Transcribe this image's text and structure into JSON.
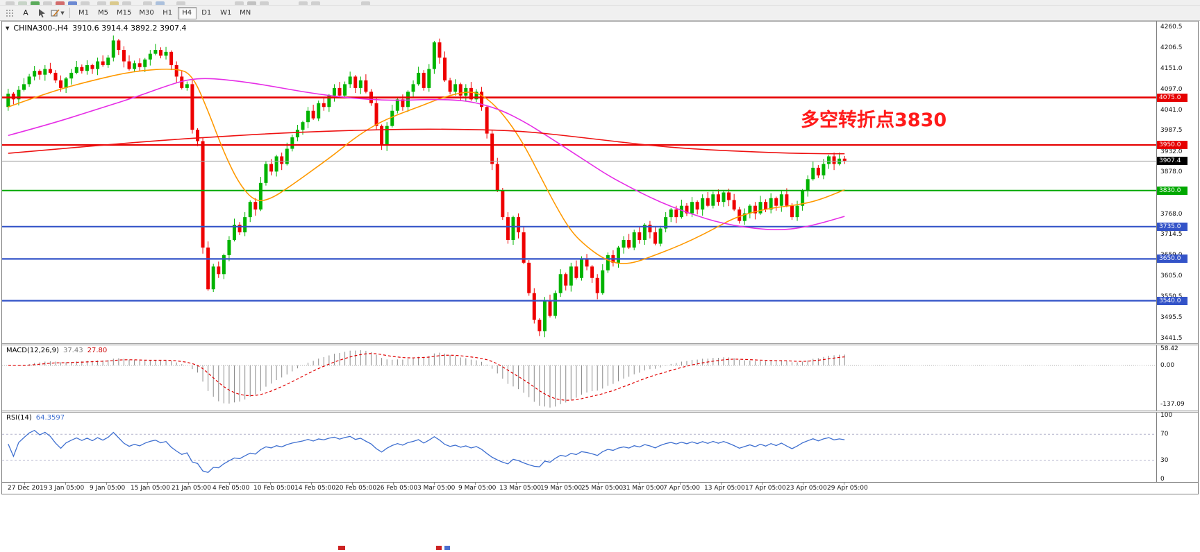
{
  "toolbar": {
    "text_tool_label": "A",
    "timeframes": [
      "M1",
      "M5",
      "M15",
      "M30",
      "H1",
      "H4",
      "D1",
      "W1",
      "MN"
    ],
    "active_timeframe": "H4"
  },
  "main_chart": {
    "header": {
      "symbol_tf": "CHINA300-,H4",
      "ohlc": "3910.6 3914.4 3892.2 3907.4"
    },
    "annotation": {
      "text": "多空转折点3830",
      "color": "#ff1a1a"
    },
    "price_axis": [
      "4260.5",
      "4206.5",
      "4151.0",
      "4097.0",
      "4041.0",
      "3987.5",
      "3932.0",
      "3878.0",
      "3822.5",
      "3768.0",
      "3714.5",
      "3659.0",
      "3605.0",
      "3550.5",
      "3495.5",
      "3441.5"
    ],
    "levels": [
      {
        "price": 4075.0,
        "label": "4075.0",
        "color": "#e60000",
        "width": 2.6
      },
      {
        "price": 3950.0,
        "label": "3950.0",
        "color": "#e60000",
        "width": 2.2
      },
      {
        "price": 3830.0,
        "label": "3830.0",
        "color": "#00a800",
        "width": 2.0
      },
      {
        "price": 3735.0,
        "label": "3735.0",
        "color": "#3353c8",
        "width": 2.2
      },
      {
        "price": 3650.0,
        "label": "3650.0",
        "color": "#3353c8",
        "width": 2.2
      },
      {
        "price": 3540.0,
        "label": "3540.0",
        "color": "#3353c8",
        "width": 2.2
      }
    ],
    "current_price": {
      "value": 3907.4,
      "label": "3907.4",
      "line_color": "#a8a8a8",
      "tag_bg": "#000000"
    }
  },
  "macd": {
    "name": "MACD(12,26,9)",
    "value_main": "37.43",
    "value_signal": "27.80",
    "axis": [
      "58.42",
      "0.00",
      "-137.09"
    ],
    "bar_color": "#8a8a8a",
    "signal_color": "#e00000"
  },
  "rsi": {
    "name": "RSI(14)",
    "value": "64.3597",
    "axis": [
      "100",
      "70",
      "30",
      "0"
    ],
    "levels": [
      70,
      30
    ],
    "line_color": "#3e6fd0"
  },
  "time_axis": [
    "27 Dec 2019",
    "3 Jan 05:00",
    "9 Jan 05:00",
    "15 Jan 05:00",
    "21 Jan 05:00",
    "4 Feb 05:00",
    "10 Feb 05:00",
    "14 Feb 05:00",
    "20 Feb 05:00",
    "26 Feb 05:00",
    "3 Mar 05:00",
    "9 Mar 05:00",
    "13 Mar 05:00",
    "19 Mar 05:00",
    "25 Mar 05:00",
    "31 Mar 05:00",
    "7 Apr 05:00",
    "13 Apr 05:00",
    "17 Apr 05:00",
    "23 Apr 05:00",
    "29 Apr 05:00"
  ],
  "chart_data": {
    "type": "candlestick",
    "symbol": "CHINA300-",
    "timeframe": "H4",
    "y_range": [
      3428,
      4275
    ],
    "up_color": "#00b300",
    "down_color": "#ee0000",
    "first_open": 4050,
    "closes": [
      4085,
      4070,
      4095,
      4110,
      4130,
      4145,
      4135,
      4150,
      4140,
      4120,
      4100,
      4125,
      4140,
      4155,
      4145,
      4160,
      4150,
      4170,
      4160,
      4180,
      4225,
      4200,
      4170,
      4150,
      4165,
      4155,
      4175,
      4190,
      4200,
      4185,
      4195,
      4160,
      4130,
      4100,
      4110,
      3990,
      3960,
      3680,
      3570,
      3630,
      3610,
      3660,
      3700,
      3740,
      3720,
      3760,
      3800,
      3780,
      3850,
      3900,
      3880,
      3920,
      3900,
      3940,
      3970,
      3990,
      4010,
      4040,
      4020,
      4060,
      4050,
      4080,
      4100,
      4080,
      4110,
      4130,
      4100,
      4120,
      4090,
      4060,
      4000,
      3950,
      4000,
      4040,
      4070,
      4050,
      4090,
      4110,
      4140,
      4100,
      4150,
      4220,
      4180,
      4120,
      4090,
      4110,
      4080,
      4100,
      4070,
      4090,
      4050,
      3980,
      3900,
      3830,
      3760,
      3700,
      3760,
      3720,
      3640,
      3560,
      3490,
      3460,
      3540,
      3500,
      3560,
      3610,
      3580,
      3630,
      3600,
      3650,
      3630,
      3600,
      3560,
      3620,
      3660,
      3640,
      3680,
      3700,
      3680,
      3720,
      3700,
      3740,
      3720,
      3690,
      3730,
      3760,
      3780,
      3760,
      3790,
      3770,
      3800,
      3780,
      3810,
      3790,
      3820,
      3800,
      3825,
      3805,
      3780,
      3750,
      3770,
      3790,
      3770,
      3800,
      3780,
      3810,
      3790,
      3820,
      3790,
      3760,
      3790,
      3830,
      3860,
      3890,
      3870,
      3900,
      3920,
      3900,
      3914,
      3907
    ],
    "moving_averages": [
      {
        "name": "fast-orange",
        "color": "#ff9900",
        "points": [
          [
            0,
            4050
          ],
          [
            8,
            4090
          ],
          [
            16,
            4120
          ],
          [
            24,
            4145
          ],
          [
            32,
            4152
          ],
          [
            35,
            4135
          ],
          [
            38,
            4040
          ],
          [
            41,
            3930
          ],
          [
            44,
            3845
          ],
          [
            47,
            3800
          ],
          [
            50,
            3808
          ],
          [
            54,
            3845
          ],
          [
            58,
            3885
          ],
          [
            62,
            3925
          ],
          [
            66,
            3970
          ],
          [
            70,
            4005
          ],
          [
            74,
            4030
          ],
          [
            78,
            4050
          ],
          [
            82,
            4072
          ],
          [
            86,
            4088
          ],
          [
            89,
            4090
          ],
          [
            92,
            4062
          ],
          [
            95,
            4015
          ],
          [
            98,
            3952
          ],
          [
            101,
            3872
          ],
          [
            104,
            3792
          ],
          [
            107,
            3722
          ],
          [
            110,
            3682
          ],
          [
            113,
            3652
          ],
          [
            116,
            3636
          ],
          [
            119,
            3640
          ],
          [
            122,
            3655
          ],
          [
            126,
            3676
          ],
          [
            130,
            3700
          ],
          [
            134,
            3728
          ],
          [
            138,
            3758
          ],
          [
            142,
            3775
          ],
          [
            146,
            3786
          ],
          [
            150,
            3792
          ],
          [
            154,
            3804
          ],
          [
            159,
            3832
          ]
        ]
      },
      {
        "name": "slow-magenta",
        "color": "#e62ee6",
        "points": [
          [
            0,
            3975
          ],
          [
            8,
            4005
          ],
          [
            16,
            4040
          ],
          [
            24,
            4075
          ],
          [
            30,
            4105
          ],
          [
            34,
            4122
          ],
          [
            38,
            4126
          ],
          [
            44,
            4118
          ],
          [
            50,
            4105
          ],
          [
            56,
            4090
          ],
          [
            62,
            4078
          ],
          [
            68,
            4070
          ],
          [
            74,
            4067
          ],
          [
            80,
            4070
          ],
          [
            86,
            4068
          ],
          [
            90,
            4058
          ],
          [
            94,
            4040
          ],
          [
            98,
            4012
          ],
          [
            102,
            3978
          ],
          [
            106,
            3942
          ],
          [
            110,
            3906
          ],
          [
            114,
            3870
          ],
          [
            118,
            3840
          ],
          [
            122,
            3812
          ],
          [
            126,
            3788
          ],
          [
            130,
            3768
          ],
          [
            134,
            3750
          ],
          [
            138,
            3738
          ],
          [
            142,
            3730
          ],
          [
            146,
            3726
          ],
          [
            150,
            3730
          ],
          [
            154,
            3742
          ],
          [
            159,
            3762
          ]
        ]
      },
      {
        "name": "long-red",
        "color": "#ee1111",
        "points": [
          [
            0,
            3928
          ],
          [
            10,
            3940
          ],
          [
            20,
            3952
          ],
          [
            30,
            3963
          ],
          [
            40,
            3972
          ],
          [
            50,
            3980
          ],
          [
            60,
            3986
          ],
          [
            70,
            3990
          ],
          [
            80,
            3992
          ],
          [
            90,
            3990
          ],
          [
            95,
            3988
          ],
          [
            100,
            3983
          ],
          [
            105,
            3976
          ],
          [
            110,
            3968
          ],
          [
            115,
            3960
          ],
          [
            120,
            3952
          ],
          [
            125,
            3945
          ],
          [
            130,
            3940
          ],
          [
            135,
            3936
          ],
          [
            140,
            3933
          ],
          [
            145,
            3930
          ],
          [
            150,
            3928
          ],
          [
            155,
            3927
          ],
          [
            159,
            3927
          ]
        ]
      }
    ]
  }
}
